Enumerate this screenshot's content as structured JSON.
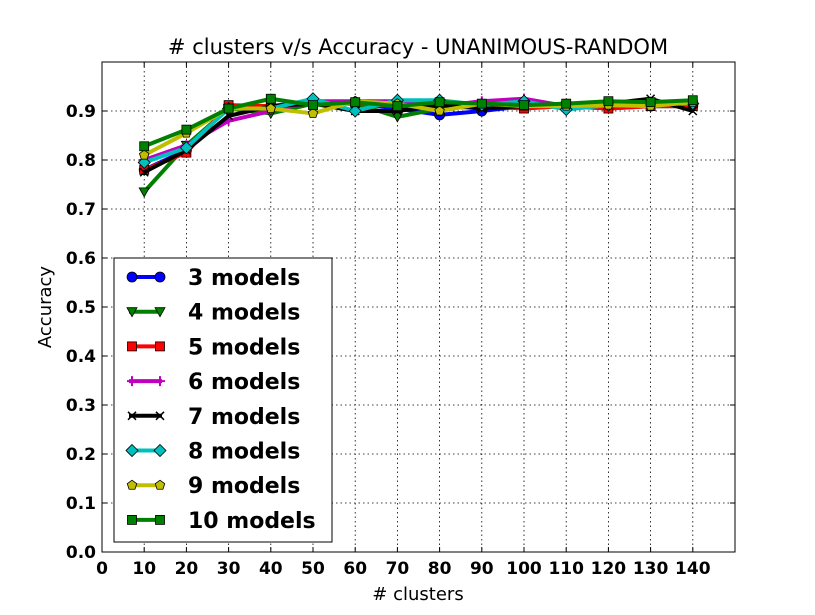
{
  "chart_data": {
    "type": "line",
    "title": "# clusters v/s Accuracy - UNANIMOUS-RANDOM",
    "xlabel": "# clusters",
    "ylabel": "Accuracy",
    "xlim": [
      0,
      150
    ],
    "ylim": [
      0.0,
      1.0
    ],
    "xticks": [
      0,
      10,
      20,
      30,
      40,
      50,
      60,
      70,
      80,
      90,
      100,
      110,
      120,
      130,
      140
    ],
    "xtick_labels": [
      "0",
      "10",
      "20",
      "30",
      "40",
      "50",
      "60",
      "70",
      "80",
      "90",
      "100",
      "110",
      "120",
      "130",
      "140"
    ],
    "yticks": [
      0.0,
      0.1,
      0.2,
      0.3,
      0.4,
      0.5,
      0.6,
      0.7,
      0.8,
      0.9
    ],
    "ytick_labels": [
      "0.0",
      "0.1",
      "0.2",
      "0.3",
      "0.4",
      "0.5",
      "0.6",
      "0.7",
      "0.8",
      "0.9"
    ],
    "grid": true,
    "legend_position": "lower-left",
    "x": [
      10,
      20,
      30,
      40,
      50,
      60,
      70,
      80,
      90,
      100,
      110,
      120,
      130,
      140
    ],
    "series": [
      {
        "name": "3 models",
        "color": "#0000ff",
        "marker": "circle",
        "values": [
          0.78,
          0.82,
          0.91,
          0.91,
          0.92,
          0.915,
          0.905,
          0.892,
          0.9,
          0.91,
          0.912,
          0.915,
          0.91,
          0.91
        ]
      },
      {
        "name": "4 models",
        "color": "#008000",
        "marker": "triangle-down",
        "values": [
          0.735,
          0.83,
          0.905,
          0.895,
          0.915,
          0.915,
          0.888,
          0.905,
          0.91,
          0.91,
          0.91,
          0.905,
          0.91,
          0.91
        ]
      },
      {
        "name": "5 models",
        "color": "#ff0000",
        "marker": "square",
        "values": [
          0.78,
          0.815,
          0.912,
          0.91,
          0.915,
          0.915,
          0.91,
          0.905,
          0.91,
          0.905,
          0.91,
          0.905,
          0.91,
          0.91
        ]
      },
      {
        "name": "6 models",
        "color": "#bf00bf",
        "marker": "plus",
        "values": [
          0.8,
          0.83,
          0.88,
          0.9,
          0.92,
          0.92,
          0.92,
          0.91,
          0.92,
          0.925,
          0.91,
          0.91,
          0.915,
          0.915
        ]
      },
      {
        "name": "7 models",
        "color": "#000000",
        "marker": "x",
        "values": [
          0.775,
          0.82,
          0.89,
          0.91,
          0.915,
          0.9,
          0.9,
          0.912,
          0.905,
          0.91,
          0.915,
          0.915,
          0.925,
          0.9
        ]
      },
      {
        "name": "8 models",
        "color": "#00bfbf",
        "marker": "diamond",
        "values": [
          0.795,
          0.825,
          0.905,
          0.905,
          0.925,
          0.9,
          0.922,
          0.922,
          0.912,
          0.92,
          0.903,
          0.912,
          0.915,
          0.915
        ]
      },
      {
        "name": "9 models",
        "color": "#bfbf00",
        "marker": "pentagon",
        "values": [
          0.81,
          0.855,
          0.905,
          0.905,
          0.895,
          0.92,
          0.915,
          0.9,
          0.915,
          0.91,
          0.91,
          0.912,
          0.91,
          0.918
        ]
      },
      {
        "name": "10 models",
        "color": "#008000",
        "marker": "square",
        "values": [
          0.828,
          0.862,
          0.905,
          0.925,
          0.912,
          0.918,
          0.91,
          0.918,
          0.915,
          0.912,
          0.915,
          0.92,
          0.918,
          0.922
        ]
      }
    ]
  }
}
